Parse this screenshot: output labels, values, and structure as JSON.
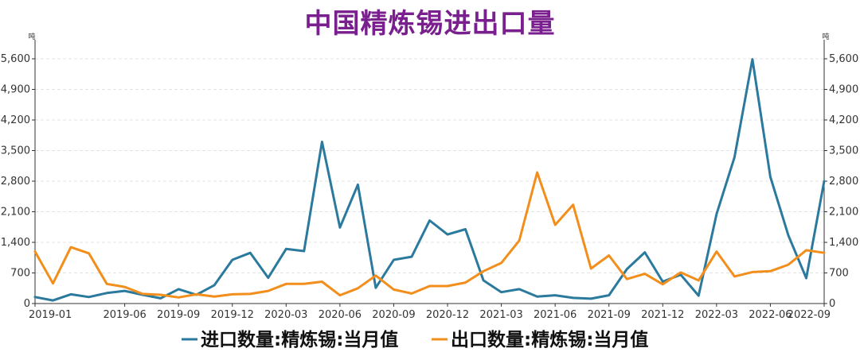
{
  "chart_data": {
    "type": "line",
    "title": "中国精炼锡进出口量",
    "y_unit_left": "吨",
    "y_unit_right": "吨",
    "ylim": [
      0,
      6000
    ],
    "y_ticks": [
      0,
      700,
      1400,
      2100,
      2800,
      3500,
      4200,
      4900,
      5600
    ],
    "y_tick_labels": [
      "0",
      "700",
      "1,400",
      "2,100",
      "2,800",
      "3,500",
      "4,200",
      "4,900",
      "5,600"
    ],
    "x_tick_labels": [
      {
        "label": "2019-01",
        "month_index": 0
      },
      {
        "label": "2019-06",
        "month_index": 5
      },
      {
        "label": "2019-09",
        "month_index": 8
      },
      {
        "label": "2019-12",
        "month_index": 11
      },
      {
        "label": "2020-03",
        "month_index": 14
      },
      {
        "label": "2020-06",
        "month_index": 17
      },
      {
        "label": "2020-09",
        "month_index": 20
      },
      {
        "label": "2020-12",
        "month_index": 23
      },
      {
        "label": "2021-03",
        "month_index": 26
      },
      {
        "label": "2021-06",
        "month_index": 29
      },
      {
        "label": "2021-09",
        "month_index": 32
      },
      {
        "label": "2021-12",
        "month_index": 35
      },
      {
        "label": "2022-03",
        "month_index": 38
      },
      {
        "label": "2022-06",
        "month_index": 41
      },
      {
        "label": "2022-09",
        "month_index": 44
      }
    ],
    "x": [
      "2019-01",
      "2019-02",
      "2019-03",
      "2019-04",
      "2019-05",
      "2019-06",
      "2019-07",
      "2019-08",
      "2019-09",
      "2019-10",
      "2019-11",
      "2019-12",
      "2020-01",
      "2020-02",
      "2020-03",
      "2020-04",
      "2020-05",
      "2020-06",
      "2020-07",
      "2020-08",
      "2020-09",
      "2020-10",
      "2020-11",
      "2020-12",
      "2021-01",
      "2021-02",
      "2021-03",
      "2021-04",
      "2021-05",
      "2021-06",
      "2021-07",
      "2021-08",
      "2021-09",
      "2021-10",
      "2021-11",
      "2021-12",
      "2022-01",
      "2022-02",
      "2022-03",
      "2022-04",
      "2022-05",
      "2022-06",
      "2022-07",
      "2022-08",
      "2022-09"
    ],
    "series": [
      {
        "name": "进口数量:精炼锡:当月值",
        "color": "#2b7a9e",
        "values": [
          150,
          70,
          210,
          150,
          240,
          290,
          200,
          120,
          330,
          200,
          420,
          1000,
          1160,
          590,
          1250,
          1200,
          3700,
          1740,
          2720,
          360,
          1000,
          1070,
          1900,
          1580,
          1700,
          530,
          260,
          330,
          160,
          190,
          130,
          110,
          190,
          790,
          1170,
          500,
          660,
          180,
          2050,
          3350,
          5590,
          2900,
          1560,
          580,
          2800
        ]
      },
      {
        "name": "出口数量:精炼锡:当月值",
        "color": "#f28e1c",
        "values": [
          1190,
          460,
          1290,
          1150,
          450,
          380,
          220,
          200,
          140,
          210,
          160,
          210,
          220,
          290,
          450,
          450,
          500,
          190,
          350,
          640,
          320,
          230,
          400,
          400,
          480,
          740,
          930,
          1440,
          3000,
          1800,
          2260,
          800,
          1100,
          560,
          680,
          440,
          710,
          530,
          1190,
          620,
          720,
          740,
          890,
          1220,
          1160
        ]
      }
    ],
    "grid": true,
    "legend_position": "bottom"
  }
}
